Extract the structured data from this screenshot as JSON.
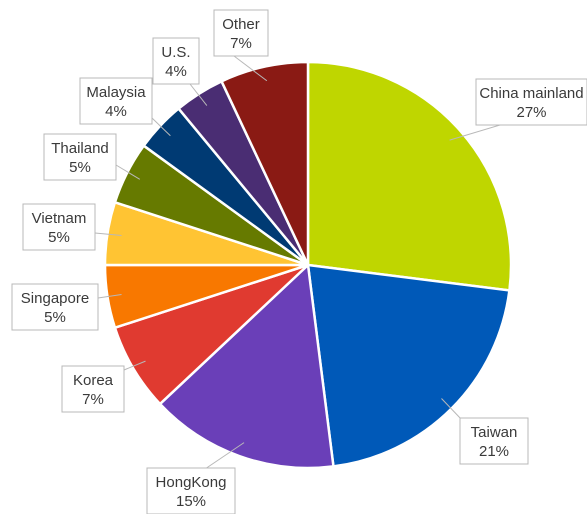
{
  "chart_data": {
    "type": "pie",
    "title": "",
    "slices": [
      {
        "name": "China mainland",
        "value": 27,
        "label": "27%",
        "color": "#bfd600"
      },
      {
        "name": "Taiwan",
        "value": 21,
        "label": "21%",
        "color": "#0059b8"
      },
      {
        "name": "HongKong",
        "value": 15,
        "label": "15%",
        "color": "#6a3fb8"
      },
      {
        "name": "Korea",
        "value": 7,
        "label": "7%",
        "color": "#e03a30"
      },
      {
        "name": "Singapore",
        "value": 5,
        "label": "5%",
        "color": "#f87800"
      },
      {
        "name": "Vietnam",
        "value": 5,
        "label": "5%",
        "color": "#ffc433"
      },
      {
        "name": "Thailand",
        "value": 5,
        "label": "5%",
        "color": "#667a00"
      },
      {
        "name": "Malaysia",
        "value": 4,
        "label": "4%",
        "color": "#003a73"
      },
      {
        "name": "U.S.",
        "value": 4,
        "label": "4%",
        "color": "#4a2d73"
      },
      {
        "name": "Other",
        "value": 7,
        "label": "7%",
        "color": "#8a1a14"
      }
    ]
  }
}
